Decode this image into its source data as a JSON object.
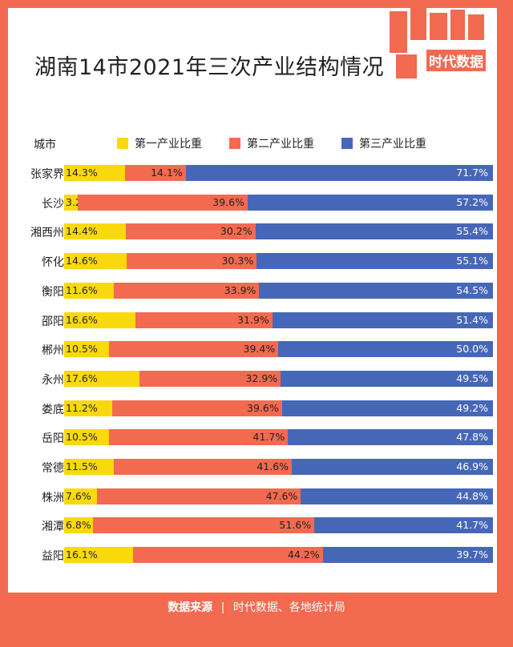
{
  "title": "湖南14市2021年三次产业结构情况",
  "logo": {
    "text": "时代数据",
    "accent": "#f26a50"
  },
  "header": {
    "city_label": "城市"
  },
  "legend": [
    {
      "label": "第一产业比重",
      "color": "#f9d90c"
    },
    {
      "label": "第二产业比重",
      "color": "#f26a50"
    },
    {
      "label": "第三产业比重",
      "color": "#4667b8"
    }
  ],
  "chart_data": {
    "type": "bar",
    "stacked": true,
    "orientation": "horizontal",
    "categories": [
      "张家界",
      "长沙",
      "湘西州",
      "怀化",
      "衡阳",
      "邵阳",
      "郴州",
      "永州",
      "娄底",
      "岳阳",
      "常德",
      "株洲",
      "湘潭",
      "益阳"
    ],
    "series": [
      {
        "name": "第一产业比重",
        "values": [
          14.3,
          3.2,
          14.4,
          14.6,
          11.6,
          16.6,
          10.5,
          17.6,
          11.2,
          10.5,
          11.5,
          7.6,
          6.8,
          16.1
        ]
      },
      {
        "name": "第二产业比重",
        "values": [
          14.1,
          39.6,
          30.2,
          30.3,
          33.9,
          31.9,
          39.4,
          32.9,
          39.6,
          41.7,
          41.6,
          47.6,
          51.6,
          44.2
        ]
      },
      {
        "name": "第三产业比重",
        "values": [
          71.7,
          57.2,
          55.4,
          55.1,
          54.5,
          51.4,
          50.0,
          49.5,
          49.2,
          47.8,
          46.9,
          44.8,
          41.7,
          39.7
        ]
      }
    ],
    "unit": "%"
  },
  "footer": {
    "source_label": "数据来源",
    "sep": "|",
    "source_value": "时代数据、各地统计局"
  }
}
